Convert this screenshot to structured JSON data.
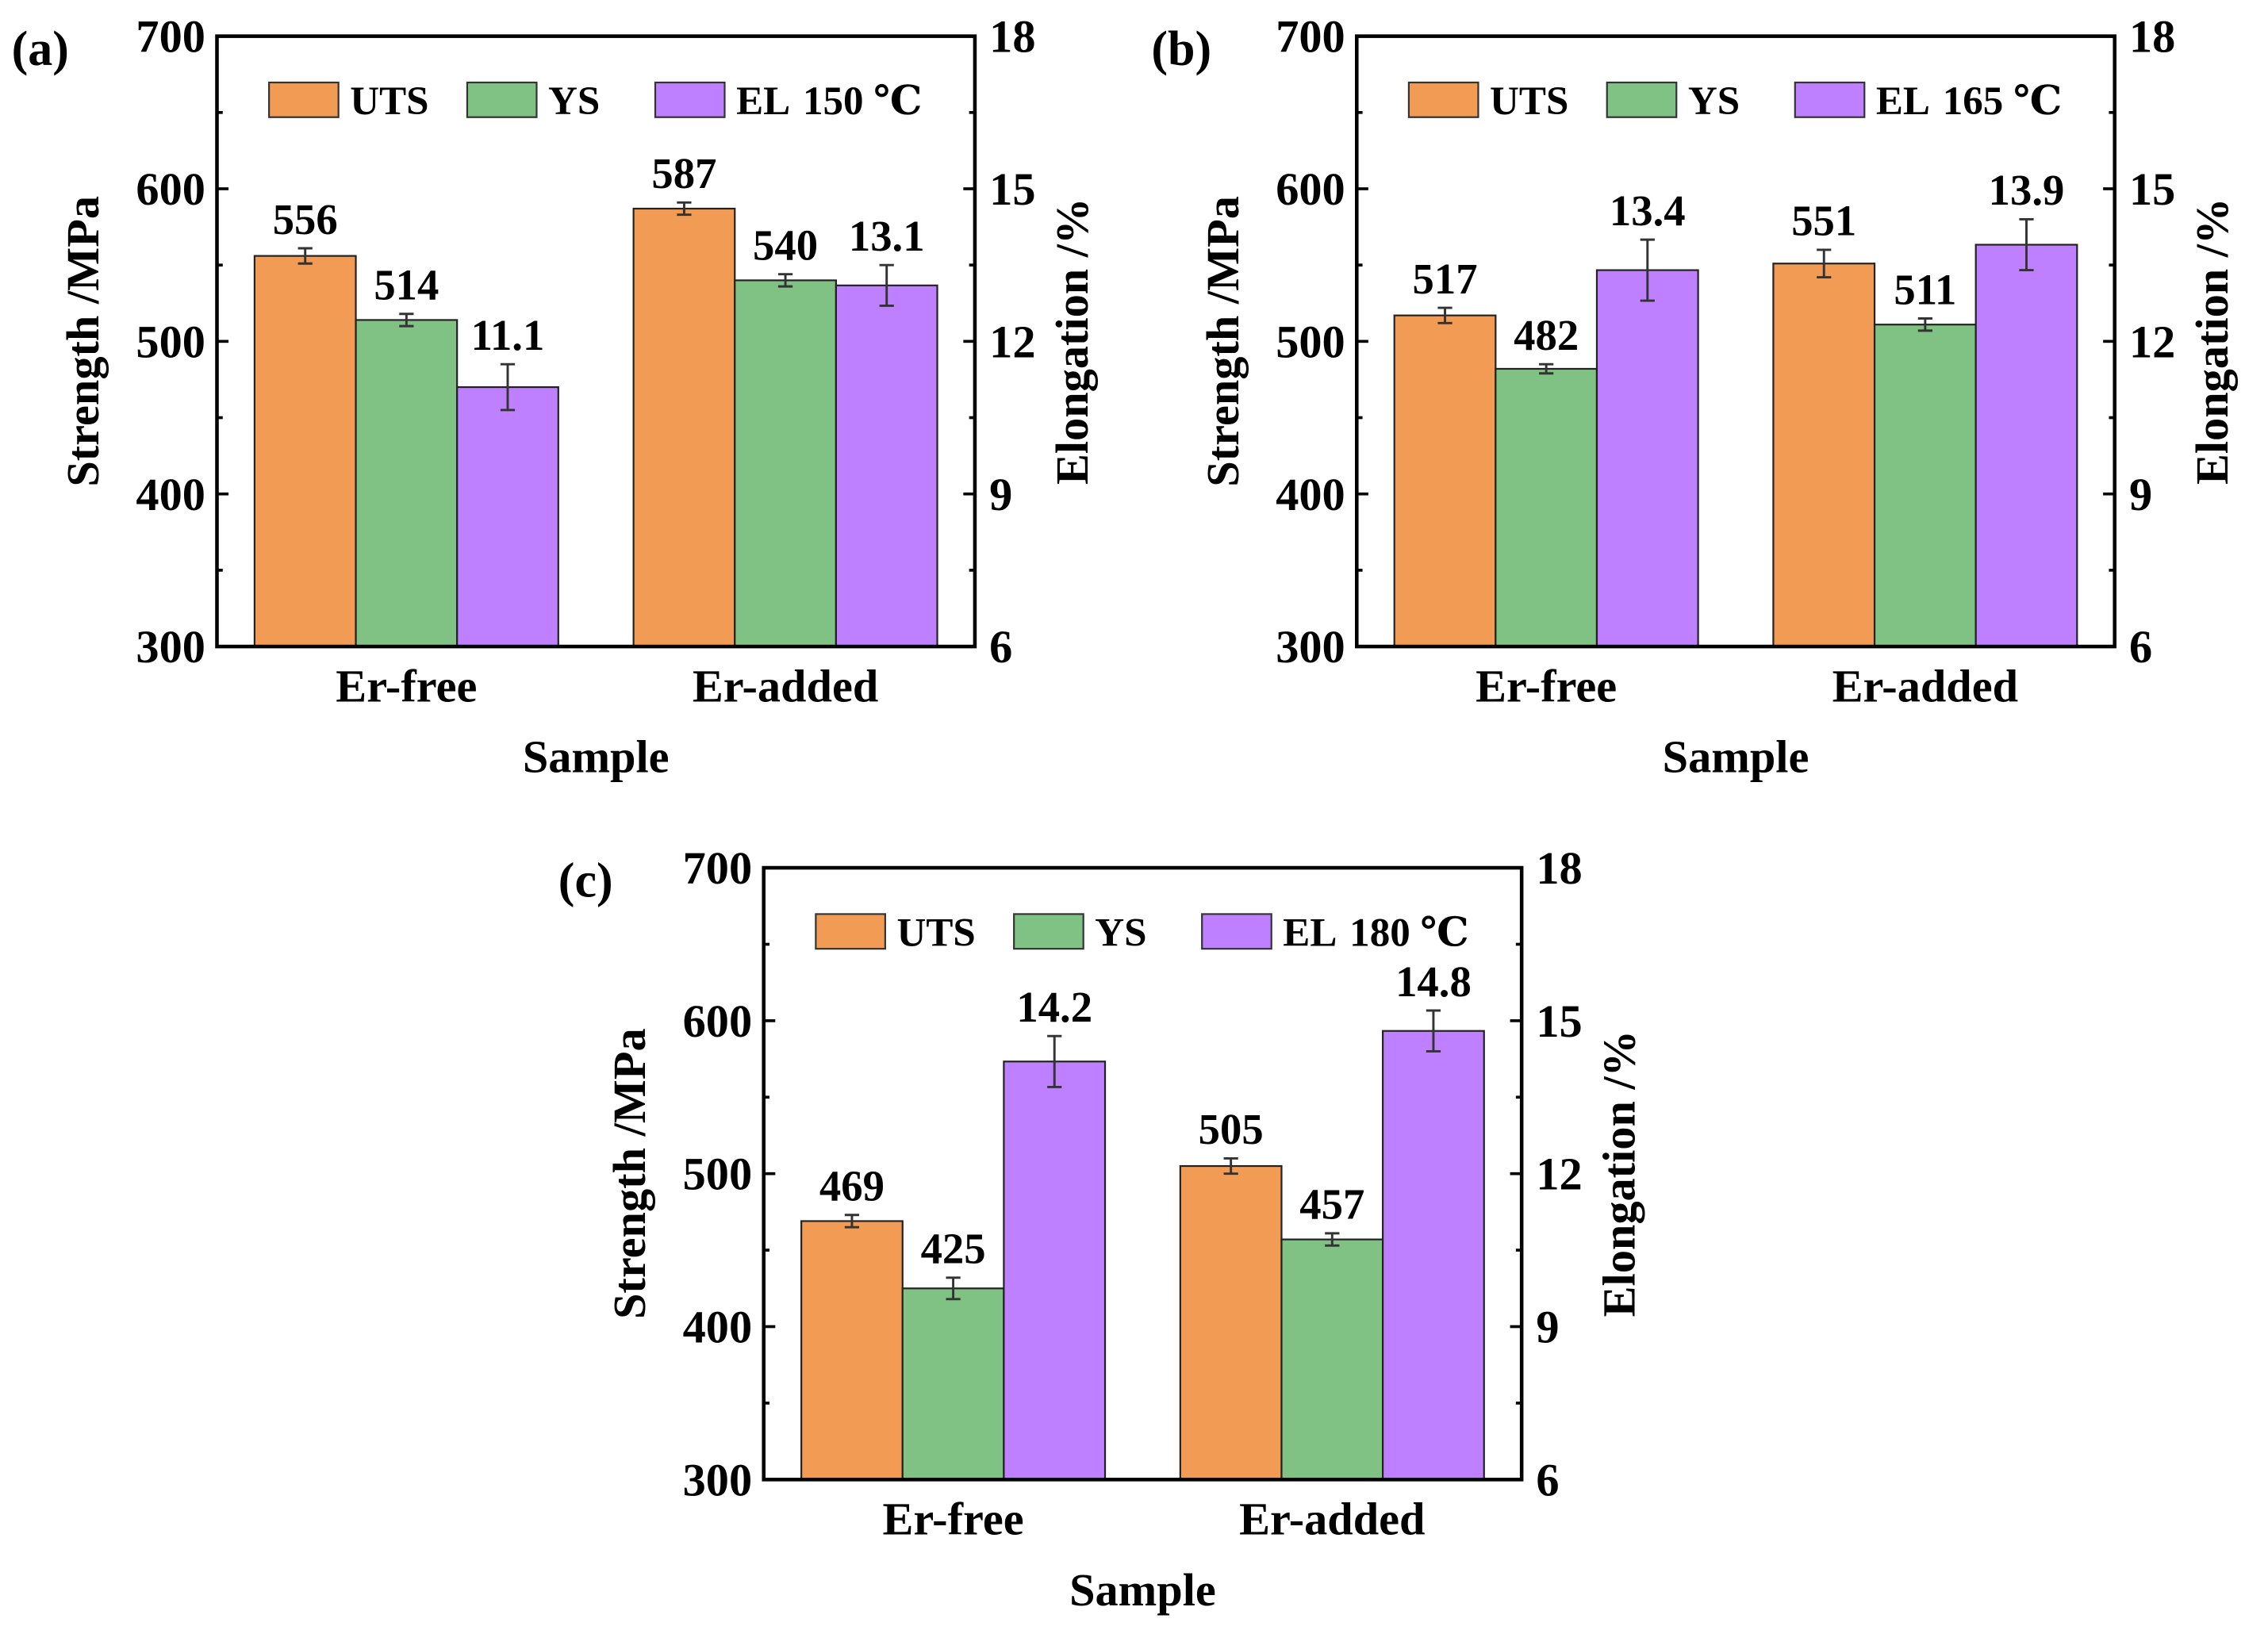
{
  "chart_data": [
    {
      "type": "bar",
      "panel_label": "(a)",
      "temperature": "150 ℃",
      "categories": [
        "Er-free",
        "Er-added"
      ],
      "xlabel": "Sample",
      "ylabel": "Strength /MPa",
      "y2label": "Elongation /%",
      "ylim": [
        300,
        700
      ],
      "y2lim": [
        6,
        18
      ],
      "yticks": [
        "300",
        "400",
        "500",
        "600",
        "700"
      ],
      "y2ticks": [
        "6",
        "9",
        "12",
        "15",
        "18"
      ],
      "series": [
        {
          "name": "UTS",
          "axis": "left",
          "color": "#F29B55",
          "values": [
            556,
            587
          ],
          "errors": [
            5,
            4
          ],
          "labels": [
            "556",
            "587"
          ]
        },
        {
          "name": "YS",
          "axis": "left",
          "color": "#80C283",
          "values": [
            514,
            540
          ],
          "errors": [
            4,
            4
          ],
          "labels": [
            "514",
            "540"
          ]
        },
        {
          "name": "EL",
          "axis": "right",
          "color": "#BF80FF",
          "values": [
            11.1,
            13.1
          ],
          "errors": [
            0.45,
            0.4
          ],
          "labels": [
            "11.1",
            "13.1"
          ]
        }
      ]
    },
    {
      "type": "bar",
      "panel_label": "(b)",
      "temperature": "165 ℃",
      "categories": [
        "Er-free",
        "Er-added"
      ],
      "xlabel": "Sample",
      "ylabel": "Strength /MPa",
      "y2label": "Elongation /%",
      "ylim": [
        300,
        700
      ],
      "y2lim": [
        6,
        18
      ],
      "yticks": [
        "300",
        "400",
        "500",
        "600",
        "700"
      ],
      "y2ticks": [
        "6",
        "9",
        "12",
        "15",
        "18"
      ],
      "series": [
        {
          "name": "UTS",
          "axis": "left",
          "color": "#F29B55",
          "values": [
            517,
            551
          ],
          "errors": [
            5,
            9
          ],
          "labels": [
            "517",
            "551"
          ]
        },
        {
          "name": "YS",
          "axis": "left",
          "color": "#80C283",
          "values": [
            482,
            511
          ],
          "errors": [
            3,
            4
          ],
          "labels": [
            "482",
            "511"
          ]
        },
        {
          "name": "EL",
          "axis": "right",
          "color": "#BF80FF",
          "values": [
            13.4,
            13.9
          ],
          "errors": [
            0.6,
            0.5
          ],
          "labels": [
            "13.4",
            "13.9"
          ]
        }
      ]
    },
    {
      "type": "bar",
      "panel_label": "(c)",
      "temperature": "180 ℃",
      "categories": [
        "Er-free",
        "Er-added"
      ],
      "xlabel": "Sample",
      "ylabel": "Strength /MPa",
      "y2label": "Elongation /%",
      "ylim": [
        300,
        700
      ],
      "y2lim": [
        6,
        18
      ],
      "yticks": [
        "300",
        "400",
        "500",
        "600",
        "700"
      ],
      "y2ticks": [
        "6",
        "9",
        "12",
        "15",
        "18"
      ],
      "series": [
        {
          "name": "UTS",
          "axis": "left",
          "color": "#F29B55",
          "values": [
            469,
            505
          ],
          "errors": [
            4,
            5
          ],
          "labels": [
            "469",
            "505"
          ]
        },
        {
          "name": "YS",
          "axis": "left",
          "color": "#80C283",
          "values": [
            425,
            457
          ],
          "errors": [
            7,
            4
          ],
          "labels": [
            "425",
            "457"
          ]
        },
        {
          "name": "EL",
          "axis": "right",
          "color": "#BF80FF",
          "values": [
            14.2,
            14.8
          ],
          "errors": [
            0.5,
            0.4
          ],
          "labels": [
            "14.2",
            "14.8"
          ]
        }
      ]
    }
  ]
}
